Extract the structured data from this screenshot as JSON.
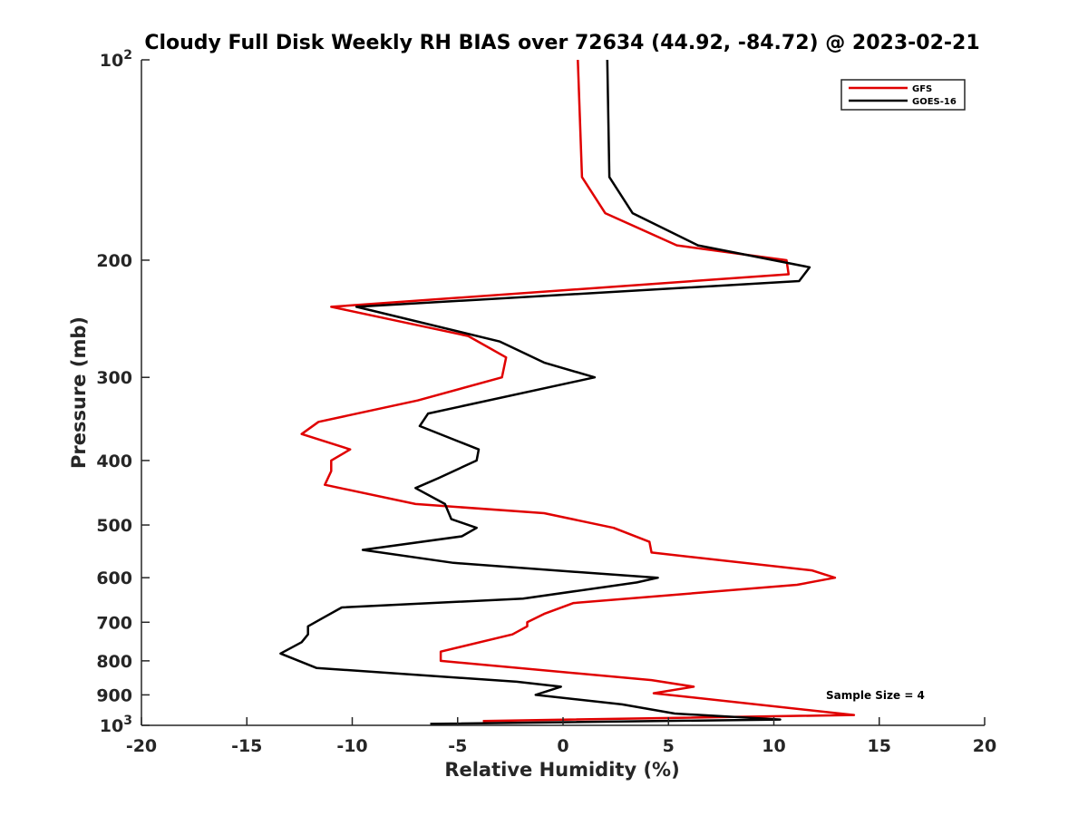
{
  "chart_data": {
    "type": "line",
    "title": "Cloudy Full Disk Weekly RH BIAS over 72634 (44.92, -84.72) @ 2023-02-21",
    "xlabel": "Relative Humidity (%)",
    "ylabel": "Pressure (mb)",
    "xlim": [
      -20,
      20
    ],
    "ylim": [
      100,
      1000
    ],
    "y_scale": "log",
    "y_reversed": true,
    "x_ticks": [
      "-20",
      "-15",
      "-10",
      "-5",
      "0",
      "5",
      "10",
      "15",
      "20"
    ],
    "y_ticks": [
      {
        "value": 100,
        "base": "10",
        "exp": "2"
      },
      {
        "value": 200,
        "label": "200"
      },
      {
        "value": 300,
        "label": "300"
      },
      {
        "value": 400,
        "label": "400"
      },
      {
        "value": 500,
        "label": "500"
      },
      {
        "value": 600,
        "label": "600"
      },
      {
        "value": 700,
        "label": "700"
      },
      {
        "value": 800,
        "label": "800"
      },
      {
        "value": 900,
        "label": "900"
      },
      {
        "value": 1000,
        "base": "10",
        "exp": "3"
      }
    ],
    "grid": false,
    "legend_position": "top-right",
    "annotation": "Sample Size = 4",
    "series": [
      {
        "name": "GFS",
        "color": "#e00000",
        "points": [
          [
            0.7,
            100
          ],
          [
            0.9,
            150
          ],
          [
            2.0,
            170
          ],
          [
            5.4,
            190
          ],
          [
            10.6,
            200
          ],
          [
            10.7,
            210
          ],
          [
            -11.0,
            235
          ],
          [
            -4.5,
            260
          ],
          [
            -2.7,
            280
          ],
          [
            -2.9,
            300
          ],
          [
            -6.9,
            325
          ],
          [
            -11.6,
            350
          ],
          [
            -12.4,
            365
          ],
          [
            -10.1,
            385
          ],
          [
            -11.0,
            400
          ],
          [
            -11.0,
            415
          ],
          [
            -11.3,
            435
          ],
          [
            -7.0,
            465
          ],
          [
            -0.9,
            480
          ],
          [
            2.4,
            505
          ],
          [
            4.1,
            530
          ],
          [
            4.2,
            550
          ],
          [
            11.8,
            585
          ],
          [
            12.9,
            600
          ],
          [
            11.1,
            615
          ],
          [
            0.5,
            655
          ],
          [
            -0.9,
            680
          ],
          [
            -1.7,
            700
          ],
          [
            -1.7,
            710
          ],
          [
            -2.4,
            730
          ],
          [
            -5.8,
            775
          ],
          [
            -5.8,
            800
          ],
          [
            4.2,
            855
          ],
          [
            6.2,
            875
          ],
          [
            4.3,
            895
          ],
          [
            13.8,
            965
          ],
          [
            -3.8,
            985
          ]
        ]
      },
      {
        "name": "GOES-16",
        "color": "#000000",
        "points": [
          [
            2.1,
            100
          ],
          [
            2.2,
            150
          ],
          [
            3.3,
            170
          ],
          [
            6.4,
            190
          ],
          [
            11.7,
            205
          ],
          [
            11.2,
            215
          ],
          [
            -9.8,
            235
          ],
          [
            -3.0,
            265
          ],
          [
            -0.9,
            285
          ],
          [
            1.5,
            300
          ],
          [
            -6.4,
            340
          ],
          [
            -6.8,
            355
          ],
          [
            -4.0,
            385
          ],
          [
            -4.1,
            400
          ],
          [
            -5.9,
            425
          ],
          [
            -7.0,
            440
          ],
          [
            -5.6,
            465
          ],
          [
            -5.3,
            490
          ],
          [
            -4.1,
            505
          ],
          [
            -4.8,
            520
          ],
          [
            -9.5,
            545
          ],
          [
            -5.2,
            570
          ],
          [
            1.2,
            590
          ],
          [
            4.5,
            600
          ],
          [
            3.5,
            610
          ],
          [
            -1.9,
            645
          ],
          [
            -10.5,
            665
          ],
          [
            -11.4,
            690
          ],
          [
            -12.1,
            710
          ],
          [
            -12.1,
            730
          ],
          [
            -12.4,
            750
          ],
          [
            -13.4,
            780
          ],
          [
            -11.7,
            820
          ],
          [
            -2.2,
            860
          ],
          [
            -0.1,
            875
          ],
          [
            -1.3,
            900
          ],
          [
            2.8,
            930
          ],
          [
            5.3,
            960
          ],
          [
            10.3,
            980
          ],
          [
            -6.3,
            995
          ]
        ]
      }
    ]
  }
}
